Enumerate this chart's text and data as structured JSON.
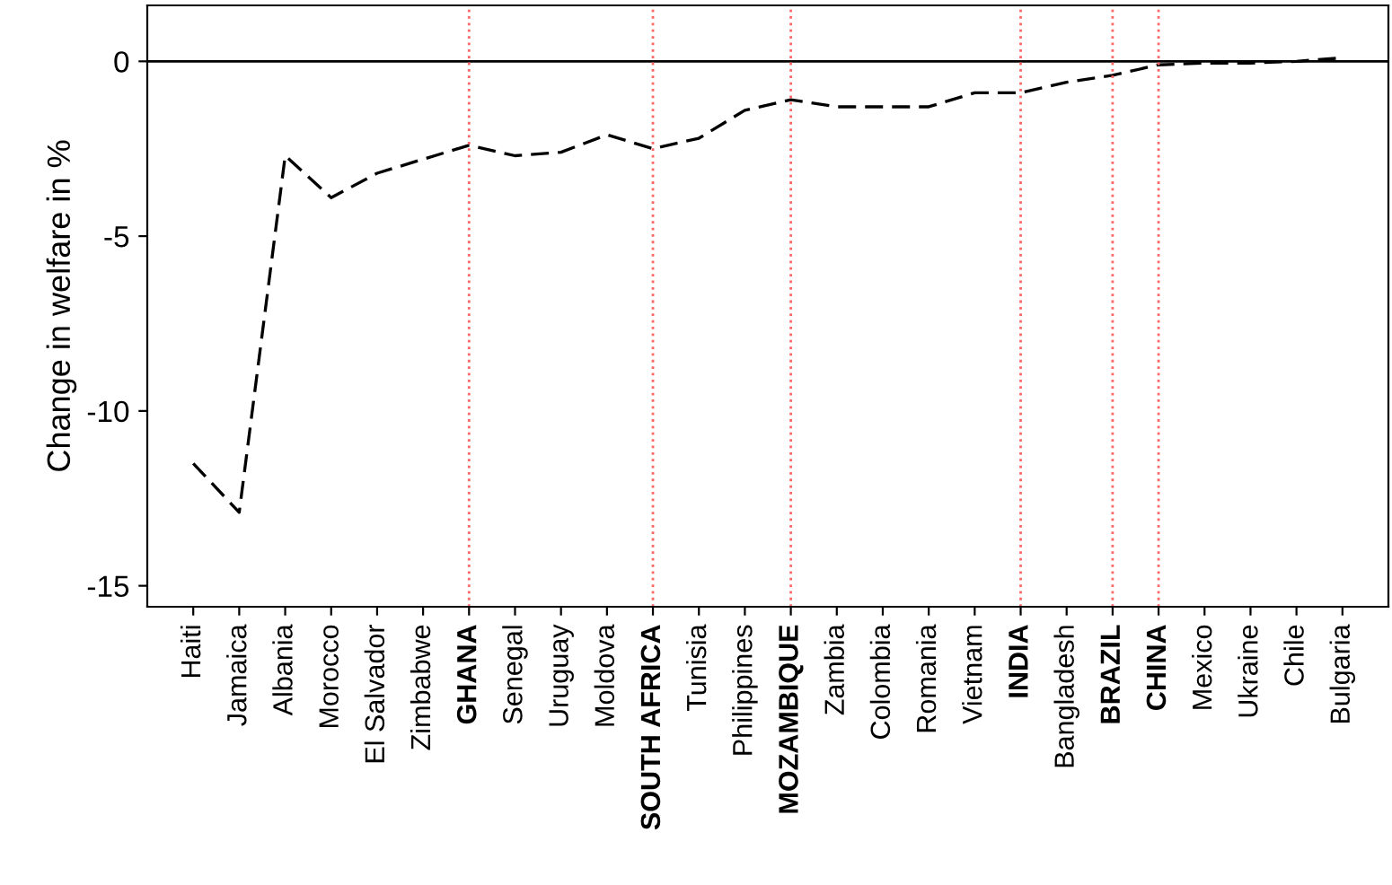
{
  "chart_data": {
    "type": "line",
    "ylabel": "Change in welfare in %",
    "categories": [
      "Haiti",
      "Jamaica",
      "Albania",
      "Morocco",
      "El Salvador",
      "Zimbabwe",
      "GHANA",
      "Senegal",
      "Uruguay",
      "Moldova",
      "SOUTH AFRICA",
      "Tunisia",
      "Philippines",
      "MOZAMBIQUE",
      "Zambia",
      "Colombia",
      "Romania",
      "Vietnam",
      "INDIA",
      "Bangladesh",
      "BRAZIL",
      "CHINA",
      "Mexico",
      "Ukraine",
      "Chile",
      "Bulgaria"
    ],
    "series": [
      {
        "color": "#000000",
        "values": [
          -11.5,
          -12.9,
          -2.7,
          -3.9,
          -3.2,
          -2.8,
          -2.4,
          -2.7,
          -2.6,
          -2.1,
          -2.5,
          -2.2,
          -1.4,
          -1.1,
          -1.3,
          -1.3,
          -1.3,
          -0.9,
          -0.9,
          -0.6,
          -0.4,
          -0.1,
          -0.05,
          -0.05,
          0,
          0.1
        ]
      }
    ],
    "ylim": [
      -15.6,
      1.6
    ],
    "yticks": [
      -15,
      -10,
      -5,
      0
    ],
    "grid": false,
    "legend": false,
    "marker": "none",
    "line_style": "dashed",
    "ref_lines": [
      {
        "axis": "y",
        "value": 0,
        "color": "#000000",
        "line_style": "solid"
      },
      {
        "axis": "x",
        "value": "GHANA",
        "color": "#ff6666",
        "line_style": "dotted"
      },
      {
        "axis": "x",
        "value": "SOUTH AFRICA",
        "color": "#ff6666",
        "line_style": "dotted"
      },
      {
        "axis": "x",
        "value": "MOZAMBIQUE",
        "color": "#ff6666",
        "line_style": "dotted"
      },
      {
        "axis": "x",
        "value": "INDIA",
        "color": "#ff6666",
        "line_style": "dotted"
      },
      {
        "axis": "x",
        "value": "BRAZIL",
        "color": "#ff6666",
        "line_style": "dotted"
      },
      {
        "axis": "x",
        "value": "CHINA",
        "color": "#ff6666",
        "line_style": "dotted"
      }
    ]
  }
}
